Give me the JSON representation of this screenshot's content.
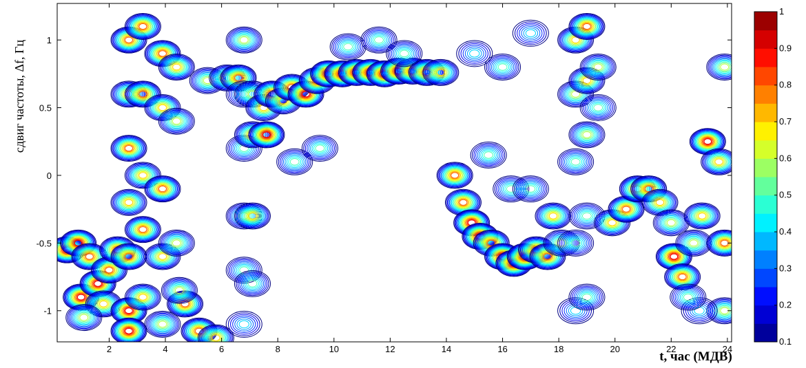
{
  "chart_data": {
    "type": "contour",
    "x_label": "t, час (МДВ)",
    "y_label": "сдвиг частоты, Δf, Гц",
    "xlim": [
      0.15,
      24.15
    ],
    "ylim": [
      -1.23,
      1.27
    ],
    "xticks": [
      2,
      4,
      6,
      8,
      10,
      12,
      14,
      16,
      18,
      20,
      22,
      24
    ],
    "yticks": [
      -1,
      -0.5,
      0,
      0.5,
      1
    ],
    "colormap": "jet",
    "clim": [
      0.1,
      1
    ],
    "cticks": [
      0.1,
      0.2,
      0.3,
      0.4,
      0.5,
      0.6,
      0.7,
      0.8,
      0.9,
      1
    ],
    "points": {
      "x": [
        0.5,
        0.9,
        1.3,
        1.0,
        1.6,
        2.0,
        2.3,
        1.8,
        1.1,
        2.7,
        2.7,
        2.7,
        2.7,
        2.7,
        2.7,
        2.7,
        3.2,
        3.2,
        3.2,
        3.2,
        3.2,
        3.9,
        3.9,
        3.9,
        3.9,
        3.9,
        4.4,
        4.4,
        4.4,
        4.7,
        4.5,
        5.2,
        5.8,
        5.5,
        6.2,
        6.6,
        6.8,
        6.8,
        6.8,
        6.8,
        6.8,
        6.8,
        7.1,
        7.1,
        7.1,
        7.1,
        7.5,
        7.8,
        8.2,
        8.5,
        9.0,
        9.4,
        9.8,
        10.3,
        10.8,
        11.3,
        11.8,
        12.3,
        12.8,
        13.3,
        13.8,
        8.6,
        9.5,
        10.5,
        11.6,
        12.5,
        15.0,
        16.0,
        17.0,
        7.6,
        14.3,
        14.6,
        14.9,
        15.2,
        15.6,
        16.0,
        16.4,
        16.8,
        17.2,
        17.6,
        15.5,
        16.3,
        17.0,
        17.8,
        18.1,
        18.6,
        18.6,
        18.6,
        18.6,
        18.6,
        19.0,
        19.0,
        19.0,
        19.0,
        19.0,
        19.4,
        19.4,
        19.9,
        20.4,
        20.8,
        21.2,
        21.6,
        22.0,
        22.1,
        22.4,
        22.8,
        23.1,
        23.3,
        23.7,
        23.9,
        23.9,
        23.9,
        23.0,
        22.6
      ],
      "y": [
        -0.55,
        -0.5,
        -0.6,
        -0.9,
        -0.8,
        -0.7,
        -0.55,
        -0.95,
        -1.05,
        1.0,
        0.6,
        0.2,
        -0.2,
        -0.6,
        -1.0,
        -1.15,
        1.1,
        0.6,
        0.0,
        -0.4,
        -0.9,
        0.9,
        0.5,
        -0.1,
        -0.6,
        -1.1,
        0.8,
        0.4,
        -0.5,
        -0.95,
        -0.85,
        -1.15,
        -1.2,
        0.7,
        0.72,
        0.72,
        1.0,
        0.6,
        0.2,
        -0.3,
        -0.7,
        -1.1,
        0.3,
        -0.3,
        -0.8,
        0.6,
        0.5,
        0.6,
        0.55,
        0.65,
        0.6,
        0.7,
        0.75,
        0.75,
        0.76,
        0.76,
        0.75,
        0.77,
        0.77,
        0.76,
        0.76,
        0.1,
        0.2,
        0.95,
        1.0,
        0.9,
        0.9,
        0.8,
        1.05,
        0.3,
        0.0,
        -0.2,
        -0.35,
        -0.45,
        -0.5,
        -0.6,
        -0.65,
        -0.6,
        -0.55,
        -0.6,
        0.15,
        -0.1,
        -0.1,
        -0.3,
        -0.5,
        1.0,
        0.6,
        0.1,
        -0.5,
        -1.0,
        1.1,
        0.7,
        0.3,
        -0.3,
        -0.9,
        0.8,
        0.5,
        -0.35,
        -0.25,
        -0.1,
        -0.1,
        -0.2,
        -0.35,
        -0.6,
        -0.75,
        -0.5,
        -0.3,
        0.25,
        0.1,
        -0.5,
        0.8,
        -1.0,
        -1.0,
        -0.9
      ],
      "values": [
        0.9,
        0.9,
        0.8,
        0.9,
        0.9,
        0.8,
        0.8,
        0.7,
        0.6,
        0.8,
        0.7,
        0.8,
        0.7,
        0.8,
        0.9,
        0.9,
        0.8,
        0.8,
        0.7,
        0.8,
        0.7,
        0.8,
        0.7,
        0.8,
        0.7,
        0.6,
        0.7,
        0.6,
        0.6,
        0.8,
        0.6,
        0.8,
        0.7,
        0.6,
        0.7,
        0.8,
        0.6,
        0.5,
        0.5,
        0.6,
        0.5,
        0.4,
        0.7,
        0.7,
        0.5,
        0.6,
        0.7,
        0.8,
        0.7,
        0.8,
        0.9,
        0.8,
        0.9,
        0.9,
        0.9,
        0.9,
        0.9,
        0.9,
        0.8,
        0.8,
        0.7,
        0.5,
        0.5,
        0.5,
        0.5,
        0.5,
        0.4,
        0.5,
        0.4,
        0.9,
        0.8,
        0.8,
        0.9,
        0.9,
        0.8,
        0.9,
        0.9,
        0.9,
        0.8,
        0.8,
        0.5,
        0.5,
        0.5,
        0.7,
        0.6,
        0.7,
        0.6,
        0.5,
        0.5,
        0.4,
        0.8,
        0.7,
        0.6,
        0.5,
        0.5,
        0.6,
        0.5,
        0.7,
        0.8,
        0.8,
        0.8,
        0.7,
        0.6,
        0.9,
        0.8,
        0.6,
        0.7,
        0.9,
        0.7,
        0.8,
        0.6,
        0.6,
        0.4,
        0.5
      ]
    }
  }
}
